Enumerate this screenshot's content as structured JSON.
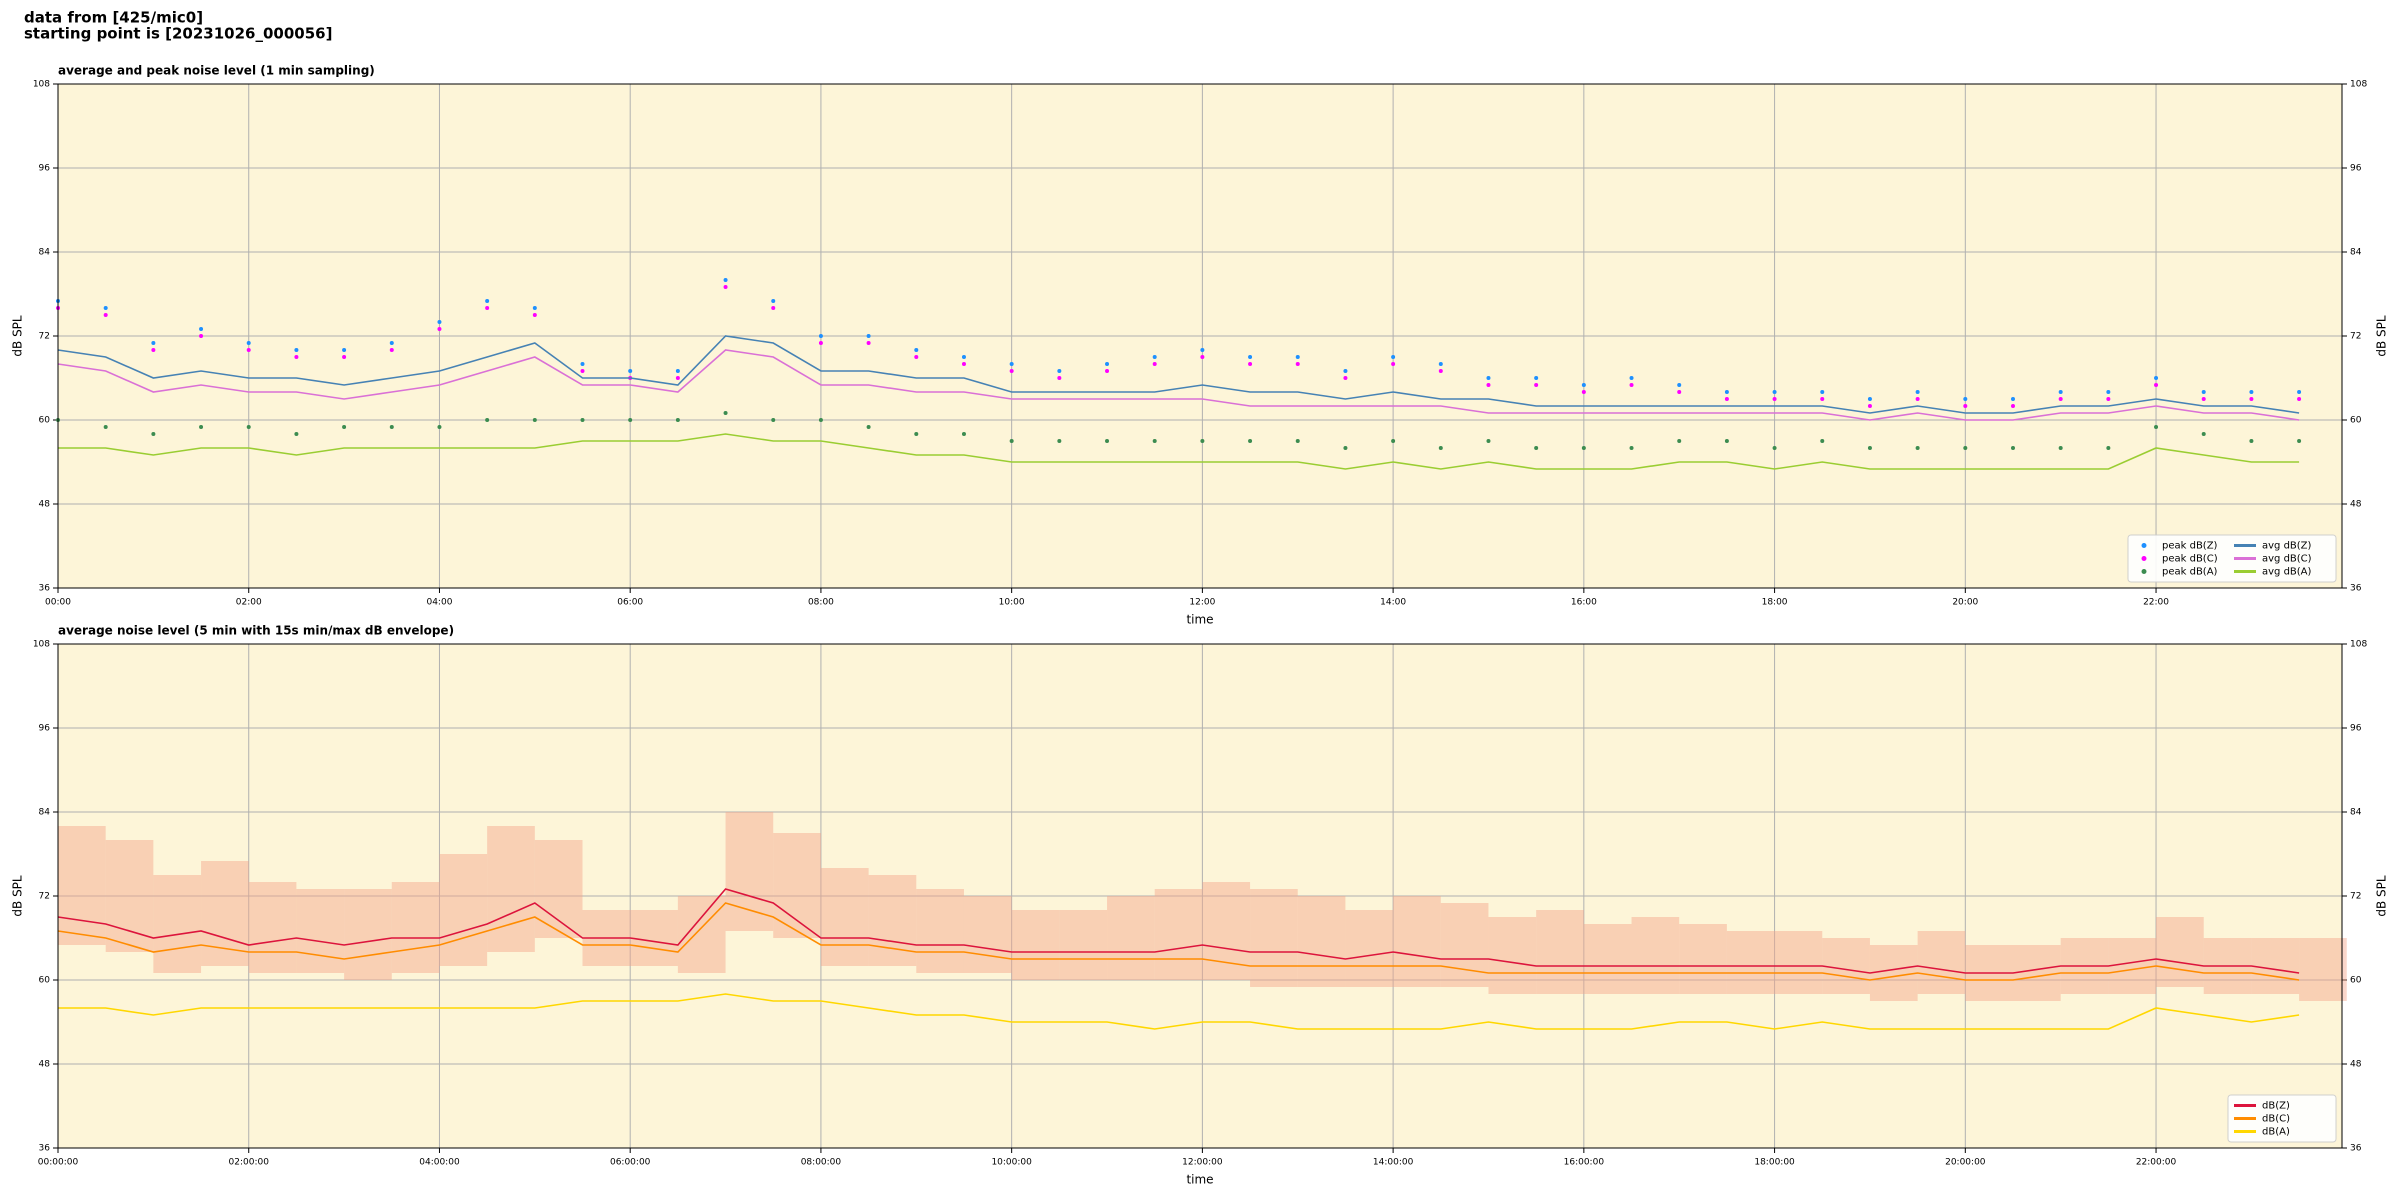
{
  "header": {
    "line1": "data from [425/mic0]",
    "line2": "starting point is [20231026_000056]"
  },
  "chart_data": [
    {
      "type": "line",
      "title": "average and peak noise level (1 min sampling)",
      "xlabel": "time",
      "ylabel": "dB SPL",
      "xlim": [
        0,
        1437
      ],
      "ylim": [
        36,
        108
      ],
      "yticks": [
        36,
        48,
        60,
        72,
        84,
        96,
        108
      ],
      "xticks": [
        {
          "value": 0,
          "label": "00:00"
        },
        {
          "value": 120,
          "label": "02:00"
        },
        {
          "value": 240,
          "label": "04:00"
        },
        {
          "value": 360,
          "label": "06:00"
        },
        {
          "value": 480,
          "label": "08:00"
        },
        {
          "value": 600,
          "label": "10:00"
        },
        {
          "value": 720,
          "label": "12:00"
        },
        {
          "value": 840,
          "label": "14:00"
        },
        {
          "value": 960,
          "label": "16:00"
        },
        {
          "value": 1080,
          "label": "18:00"
        },
        {
          "value": 1200,
          "label": "20:00"
        },
        {
          "value": 1320,
          "label": "22:00"
        }
      ],
      "grid": true,
      "background": "#fdf5d8",
      "legend": "lower right",
      "legend_ncol": 2,
      "x": [
        0,
        30,
        60,
        90,
        120,
        150,
        180,
        210,
        240,
        270,
        300,
        330,
        360,
        390,
        420,
        450,
        480,
        510,
        540,
        570,
        600,
        630,
        660,
        690,
        720,
        750,
        780,
        810,
        840,
        870,
        900,
        930,
        960,
        990,
        1020,
        1050,
        1080,
        1110,
        1140,
        1170,
        1200,
        1230,
        1260,
        1290,
        1320,
        1350,
        1380,
        1410
      ],
      "series": [
        {
          "name": "peak dB(Z)",
          "style": "scatter",
          "color": "#1e90ff",
          "values": [
            77,
            76,
            71,
            73,
            71,
            70,
            70,
            71,
            74,
            77,
            76,
            68,
            67,
            67,
            80,
            77,
            72,
            72,
            70,
            69,
            68,
            67,
            68,
            69,
            70,
            69,
            69,
            67,
            69,
            68,
            66,
            66,
            65,
            66,
            65,
            64,
            64,
            64,
            63,
            64,
            63,
            63,
            64,
            64,
            66,
            64,
            64,
            64
          ]
        },
        {
          "name": "peak dB(C)",
          "style": "scatter",
          "color": "#ff00ff",
          "values": [
            76,
            75,
            70,
            72,
            70,
            69,
            69,
            70,
            73,
            76,
            75,
            67,
            66,
            66,
            79,
            76,
            71,
            71,
            69,
            68,
            67,
            66,
            67,
            68,
            69,
            68,
            68,
            66,
            68,
            67,
            65,
            65,
            64,
            65,
            64,
            63,
            63,
            63,
            62,
            63,
            62,
            62,
            63,
            63,
            65,
            63,
            63,
            63
          ]
        },
        {
          "name": "peak dB(A)",
          "style": "scatter",
          "color": "#3c8c50",
          "values": [
            60,
            59,
            58,
            59,
            59,
            58,
            59,
            59,
            59,
            60,
            60,
            60,
            60,
            60,
            61,
            60,
            60,
            59,
            58,
            58,
            57,
            57,
            57,
            57,
            57,
            57,
            57,
            56,
            57,
            56,
            57,
            56,
            56,
            56,
            57,
            57,
            56,
            57,
            56,
            56,
            56,
            56,
            56,
            56,
            59,
            58,
            57,
            57
          ]
        },
        {
          "name": "avg dB(Z)",
          "style": "line",
          "color": "#4682b4",
          "values": [
            70,
            69,
            66,
            67,
            66,
            66,
            65,
            66,
            67,
            69,
            71,
            66,
            66,
            65,
            72,
            71,
            67,
            67,
            66,
            66,
            64,
            64,
            64,
            64,
            65,
            64,
            64,
            63,
            64,
            63,
            63,
            62,
            62,
            62,
            62,
            62,
            62,
            62,
            61,
            62,
            61,
            61,
            62,
            62,
            63,
            62,
            62,
            61
          ]
        },
        {
          "name": "avg dB(C)",
          "style": "line",
          "color": "#da70d6",
          "values": [
            68,
            67,
            64,
            65,
            64,
            64,
            63,
            64,
            65,
            67,
            69,
            65,
            65,
            64,
            70,
            69,
            65,
            65,
            64,
            64,
            63,
            63,
            63,
            63,
            63,
            62,
            62,
            62,
            62,
            62,
            61,
            61,
            61,
            61,
            61,
            61,
            61,
            61,
            60,
            61,
            60,
            60,
            61,
            61,
            62,
            61,
            61,
            60
          ]
        },
        {
          "name": "avg dB(A)",
          "style": "line",
          "color": "#9acd32",
          "values": [
            56,
            56,
            55,
            56,
            56,
            55,
            56,
            56,
            56,
            56,
            56,
            57,
            57,
            57,
            58,
            57,
            57,
            56,
            55,
            55,
            54,
            54,
            54,
            54,
            54,
            54,
            54,
            53,
            54,
            53,
            54,
            53,
            53,
            53,
            54,
            54,
            53,
            54,
            53,
            53,
            53,
            53,
            53,
            53,
            56,
            55,
            54,
            54
          ]
        }
      ]
    },
    {
      "type": "line",
      "title": "average noise level (5 min with 15s min/max dB envelope)",
      "xlabel": "time",
      "ylabel": "dB SPL",
      "xlim": [
        0,
        1437
      ],
      "ylim": [
        36,
        108
      ],
      "yticks": [
        36,
        48,
        60,
        72,
        84,
        96,
        108
      ],
      "xticks": [
        {
          "value": 0,
          "label": "00:00:00"
        },
        {
          "value": 120,
          "label": "02:00:00"
        },
        {
          "value": 240,
          "label": "04:00:00"
        },
        {
          "value": 360,
          "label": "06:00:00"
        },
        {
          "value": 480,
          "label": "08:00:00"
        },
        {
          "value": 600,
          "label": "10:00:00"
        },
        {
          "value": 720,
          "label": "12:00:00"
        },
        {
          "value": 840,
          "label": "14:00:00"
        },
        {
          "value": 960,
          "label": "16:00:00"
        },
        {
          "value": 1080,
          "label": "18:00:00"
        },
        {
          "value": 1200,
          "label": "20:00:00"
        },
        {
          "value": 1320,
          "label": "22:00:00"
        }
      ],
      "grid": true,
      "background": "#fdf5d8",
      "legend": "lower right",
      "legend_ncol": 1,
      "x": [
        0,
        30,
        60,
        90,
        120,
        150,
        180,
        210,
        240,
        270,
        300,
        330,
        360,
        390,
        420,
        450,
        480,
        510,
        540,
        570,
        600,
        630,
        660,
        690,
        720,
        750,
        780,
        810,
        840,
        870,
        900,
        930,
        960,
        990,
        1020,
        1050,
        1080,
        1110,
        1140,
        1170,
        1200,
        1230,
        1260,
        1290,
        1320,
        1350,
        1380,
        1410
      ],
      "envelope": {
        "color": "#f4a58a",
        "max": [
          82,
          80,
          75,
          77,
          74,
          73,
          73,
          74,
          78,
          82,
          80,
          70,
          70,
          72,
          84,
          81,
          76,
          75,
          73,
          72,
          70,
          70,
          72,
          73,
          74,
          73,
          72,
          70,
          72,
          71,
          69,
          70,
          68,
          69,
          68,
          67,
          67,
          66,
          65,
          67,
          65,
          65,
          66,
          66,
          69,
          66,
          66,
          66
        ],
        "min": [
          65,
          64,
          61,
          62,
          61,
          61,
          60,
          61,
          62,
          64,
          66,
          62,
          62,
          61,
          67,
          66,
          62,
          62,
          61,
          61,
          60,
          60,
          60,
          60,
          60,
          59,
          59,
          59,
          59,
          59,
          58,
          58,
          58,
          58,
          58,
          58,
          58,
          58,
          57,
          58,
          57,
          57,
          58,
          58,
          59,
          58,
          58,
          57
        ]
      },
      "series": [
        {
          "name": "dB(Z)",
          "style": "line",
          "color": "#dc143c",
          "values": [
            69,
            68,
            66,
            67,
            65,
            66,
            65,
            66,
            66,
            68,
            71,
            66,
            66,
            65,
            73,
            71,
            66,
            66,
            65,
            65,
            64,
            64,
            64,
            64,
            65,
            64,
            64,
            63,
            64,
            63,
            63,
            62,
            62,
            62,
            62,
            62,
            62,
            62,
            61,
            62,
            61,
            61,
            62,
            62,
            63,
            62,
            62,
            61
          ]
        },
        {
          "name": "dB(C)",
          "style": "line",
          "color": "#ff8c00",
          "values": [
            67,
            66,
            64,
            65,
            64,
            64,
            63,
            64,
            65,
            67,
            69,
            65,
            65,
            64,
            71,
            69,
            65,
            65,
            64,
            64,
            63,
            63,
            63,
            63,
            63,
            62,
            62,
            62,
            62,
            62,
            61,
            61,
            61,
            61,
            61,
            61,
            61,
            61,
            60,
            61,
            60,
            60,
            61,
            61,
            62,
            61,
            61,
            60
          ]
        },
        {
          "name": "dB(A)",
          "style": "line",
          "color": "#ffd700",
          "values": [
            56,
            56,
            55,
            56,
            56,
            56,
            56,
            56,
            56,
            56,
            56,
            57,
            57,
            57,
            58,
            57,
            57,
            56,
            55,
            55,
            54,
            54,
            54,
            53,
            54,
            54,
            53,
            53,
            53,
            53,
            54,
            53,
            53,
            53,
            54,
            54,
            53,
            54,
            53,
            53,
            53,
            53,
            53,
            53,
            56,
            55,
            54,
            55
          ]
        }
      ]
    }
  ]
}
